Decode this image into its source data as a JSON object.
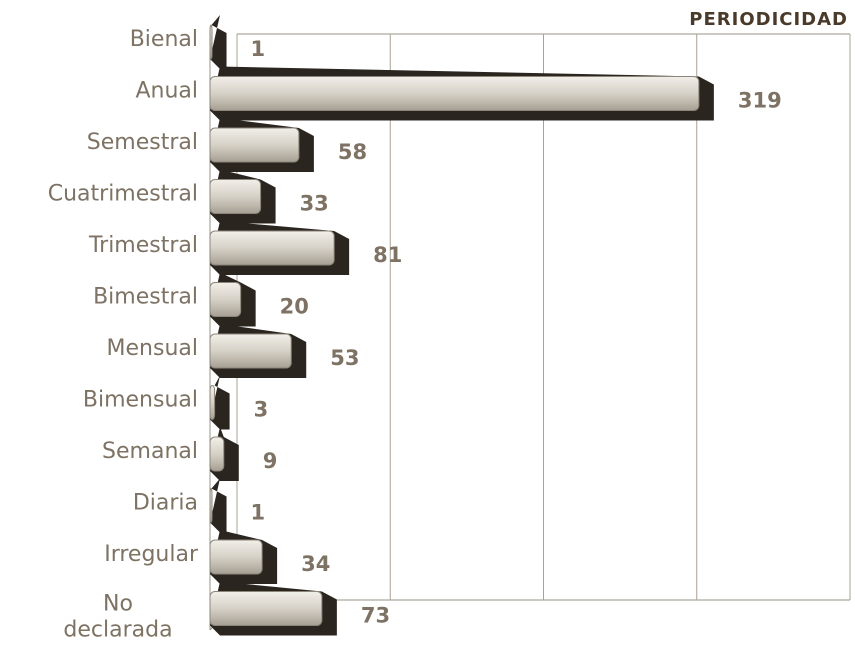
{
  "chart_data": {
    "type": "bar",
    "orientation": "horizontal",
    "title": "PERIODICIDAD",
    "categories": [
      "Bienal",
      "Anual",
      "Semestral",
      "Cuatrimestral",
      "Trimestral",
      "Bimestral",
      "Mensual",
      "Bimensual",
      "Semanal",
      "Diaria",
      "Irregular",
      "No declarada"
    ],
    "values": [
      1,
      319,
      58,
      33,
      81,
      20,
      53,
      3,
      9,
      1,
      34,
      73
    ],
    "color": "#d9d4ca",
    "shadow_color": "#2b2520",
    "xlim": [
      0,
      400
    ],
    "xticks": [
      0,
      100,
      200,
      300,
      400
    ],
    "grid": true
  }
}
